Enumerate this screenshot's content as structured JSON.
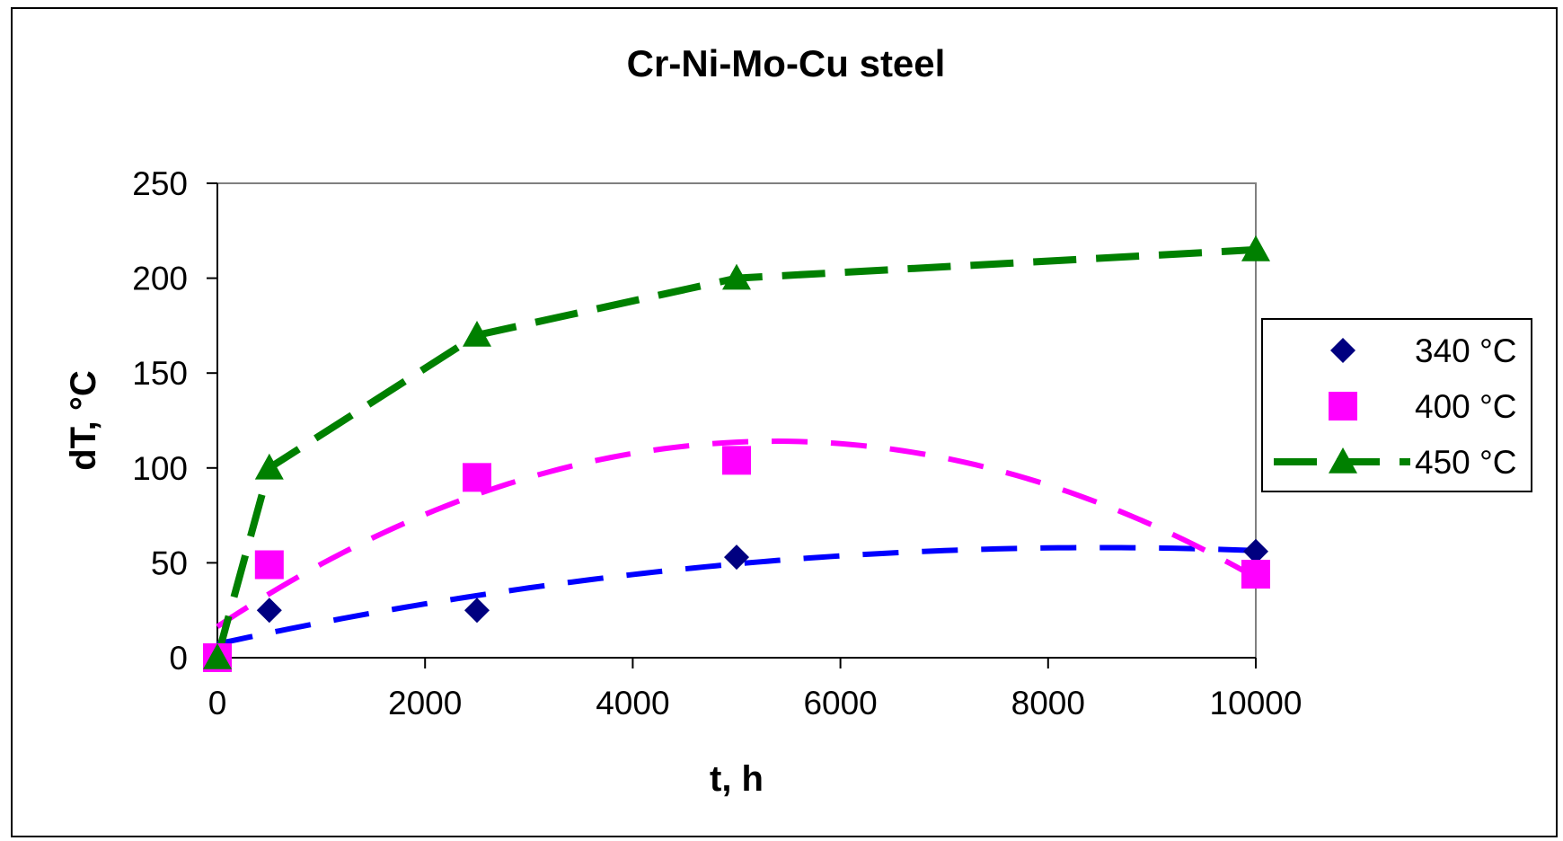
{
  "chart_data": {
    "type": "scatter",
    "title": "Cr-Ni-Mo-Cu steel",
    "xlabel": "t, h",
    "ylabel": "dT, °C",
    "xlim": [
      0,
      10000
    ],
    "ylim": [
      0,
      250
    ],
    "xticks": [
      "0",
      "2000",
      "4000",
      "6000",
      "8000",
      "10000"
    ],
    "yticks": [
      "0",
      "50",
      "100",
      "150",
      "200",
      "250"
    ],
    "grid": false,
    "legend_position": "right",
    "series": [
      {
        "name": "340 °C",
        "marker": "diamond",
        "color": "#000080",
        "x": [
          0,
          500,
          2500,
          5000,
          10000
        ],
        "y": [
          0,
          25,
          25,
          53,
          56
        ],
        "trend": "dashed",
        "trend_color": "#0000ff"
      },
      {
        "name": "400 °C",
        "marker": "square",
        "color": "#ff00ff",
        "x": [
          0,
          500,
          2500,
          5000,
          10000
        ],
        "y": [
          0,
          49,
          95,
          104,
          44
        ],
        "trend": "dashed",
        "trend_color": "#ff00ff"
      },
      {
        "name": "450 °C",
        "marker": "triangle",
        "color": "#008000",
        "x": [
          0,
          500,
          2500,
          5000,
          10000
        ],
        "y": [
          0,
          100,
          170,
          200,
          215
        ],
        "trend": "dashed-connecting",
        "trend_color": "#008000"
      }
    ]
  }
}
